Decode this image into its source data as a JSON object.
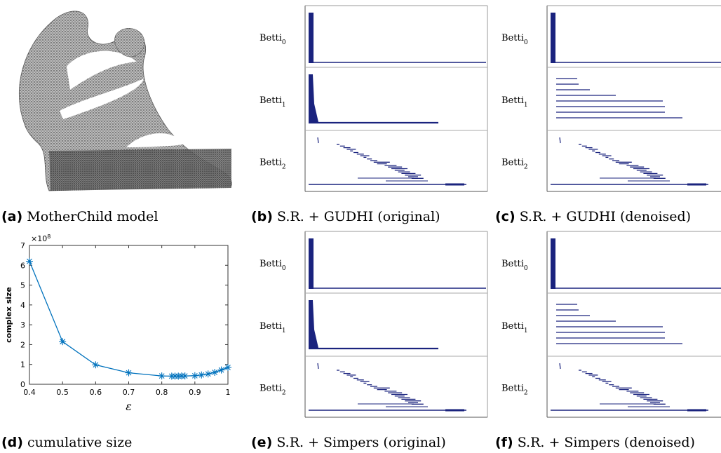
{
  "captions": {
    "a": {
      "tag": "(a)",
      "text": "MotherChild model"
    },
    "b": {
      "tag": "(b)",
      "text": "S.R. + GUDHI (original)"
    },
    "c": {
      "tag": "(c)",
      "text": "S.R. + GUDHI (denoised)"
    },
    "d": {
      "tag": "(d)",
      "text": "cumulative size"
    },
    "e": {
      "tag": "(e)",
      "text": "S.R. + Simpers (original)"
    },
    "f": {
      "tag": "(f)",
      "text": "S.R. + Simpers (denoised)"
    }
  },
  "betti_label": "Betti",
  "barcode_color": "#1a237e",
  "curve_color": "#0072bd",
  "chart_data": {
    "type": "line",
    "title": "",
    "xlabel": "ε",
    "ylabel": "complex size",
    "y_exponent_label": "×10",
    "y_exponent": "8",
    "xlim": [
      0.4,
      1.0
    ],
    "ylim": [
      0,
      7
    ],
    "x_ticks": [
      "0.4",
      "0.5",
      "0.6",
      "0.7",
      "0.8",
      "0.9",
      "1"
    ],
    "y_ticks": [
      "0",
      "1",
      "2",
      "3",
      "4",
      "5",
      "6",
      "7"
    ],
    "grid": false,
    "marker": "asterisk",
    "series": [
      {
        "x": [
          0.4,
          0.5,
          0.6,
          0.7,
          0.8,
          0.83,
          0.84,
          0.85,
          0.86,
          0.87,
          0.9,
          0.92,
          0.94,
          0.96,
          0.98,
          1.0
        ],
        "y": [
          6.2,
          2.15,
          0.98,
          0.58,
          0.42,
          0.41,
          0.41,
          0.41,
          0.42,
          0.42,
          0.43,
          0.47,
          0.52,
          0.6,
          0.72,
          0.85
        ]
      }
    ]
  }
}
